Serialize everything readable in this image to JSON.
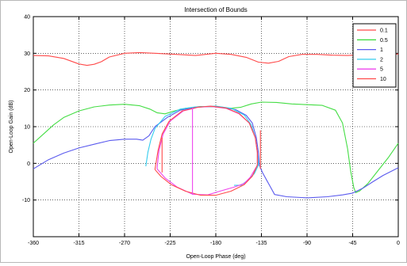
{
  "chart_data": {
    "type": "line",
    "title": "Intersection of Bounds",
    "xlabel": "Open-Loop Phase (deg)",
    "ylabel": "Open-Loop Gain (dB)",
    "xlim": [
      -360,
      0
    ],
    "ylim": [
      -20,
      40
    ],
    "xticks": [
      -360,
      -315,
      -270,
      -225,
      -180,
      -135,
      -90,
      -45,
      0
    ],
    "yticks": [
      -10,
      0,
      10,
      20,
      30,
      40
    ],
    "grid": true,
    "legend_position": "top-right",
    "series": [
      {
        "name": "0.1",
        "color": "#ff4a4a",
        "points": [
          [
            -360,
            29.4
          ],
          [
            -345,
            29.3
          ],
          [
            -330,
            28.6
          ],
          [
            -315,
            27.1
          ],
          [
            -307,
            26.7
          ],
          [
            -300,
            27.0
          ],
          [
            -293,
            27.7
          ],
          [
            -285,
            29.0
          ],
          [
            -270,
            30.0
          ],
          [
            -255,
            30.2
          ],
          [
            -240,
            30.0
          ],
          [
            -225,
            29.8
          ],
          [
            -212,
            29.6
          ],
          [
            -200,
            29.4
          ],
          [
            -190,
            29.7
          ],
          [
            -180,
            30.0
          ],
          [
            -165,
            29.7
          ],
          [
            -150,
            28.9
          ],
          [
            -138,
            27.6
          ],
          [
            -128,
            27.3
          ],
          [
            -118,
            27.8
          ],
          [
            -108,
            29.1
          ],
          [
            -95,
            29.7
          ],
          [
            -80,
            29.7
          ],
          [
            -65,
            29.5
          ],
          [
            -50,
            29.4
          ],
          [
            -35,
            29.6
          ],
          [
            -18,
            29.8
          ],
          [
            0,
            29.8
          ]
        ]
      },
      {
        "name": "0.5",
        "color": "#44dd44",
        "points": [
          [
            -360,
            5.5
          ],
          [
            -350,
            8.0
          ],
          [
            -340,
            10.5
          ],
          [
            -330,
            12.5
          ],
          [
            -315,
            14.3
          ],
          [
            -300,
            15.4
          ],
          [
            -285,
            15.9
          ],
          [
            -270,
            16.1
          ],
          [
            -255,
            15.7
          ],
          [
            -245,
            14.8
          ],
          [
            -238,
            13.8
          ],
          [
            -230,
            13.5
          ],
          [
            -222,
            14.2
          ],
          [
            -210,
            15.0
          ],
          [
            -195,
            15.5
          ],
          [
            -180,
            15.4
          ],
          [
            -165,
            15.0
          ],
          [
            -155,
            15.3
          ],
          [
            -145,
            16.2
          ],
          [
            -135,
            16.7
          ],
          [
            -120,
            16.6
          ],
          [
            -105,
            16.2
          ],
          [
            -90,
            16.0
          ],
          [
            -75,
            15.8
          ],
          [
            -62,
            14.5
          ],
          [
            -55,
            11.0
          ],
          [
            -50,
            4.0
          ],
          [
            -47,
            -2.0
          ],
          [
            -44,
            -6.5
          ],
          [
            -42,
            -8.0
          ],
          [
            -38,
            -7.5
          ],
          [
            -30,
            -5.5
          ],
          [
            -20,
            -2.0
          ],
          [
            -10,
            1.5
          ],
          [
            0,
            5.5
          ]
        ]
      },
      {
        "name": "1",
        "color": "#5a5aee",
        "points": [
          [
            -360,
            -1.5
          ],
          [
            -345,
            1.0
          ],
          [
            -330,
            2.8
          ],
          [
            -315,
            4.2
          ],
          [
            -300,
            5.2
          ],
          [
            -285,
            6.2
          ],
          [
            -270,
            6.6
          ],
          [
            -258,
            6.6
          ],
          [
            -252,
            6.3
          ],
          [
            -246,
            7.5
          ],
          [
            -240,
            10.0
          ],
          [
            -228,
            12.5
          ],
          [
            -215,
            14.5
          ],
          [
            -200,
            15.3
          ],
          [
            -185,
            15.5
          ],
          [
            -175,
            15.4
          ],
          [
            -160,
            14.6
          ],
          [
            -150,
            13.1
          ],
          [
            -144,
            11.0
          ],
          [
            -140,
            7.0
          ],
          [
            -138,
            3.0
          ],
          [
            -137,
            -0.5
          ],
          [
            -134,
            -2.5
          ],
          [
            -130,
            -4.5
          ],
          [
            -126,
            -6.5
          ],
          [
            -122,
            -8.5
          ],
          [
            -110,
            -9.1
          ],
          [
            -90,
            -9.4
          ],
          [
            -70,
            -9.1
          ],
          [
            -55,
            -8.6
          ],
          [
            -45,
            -8.1
          ],
          [
            -35,
            -6.8
          ],
          [
            -25,
            -5.0
          ],
          [
            -15,
            -3.3
          ],
          [
            0,
            -1.2
          ]
        ]
      },
      {
        "name": "2",
        "color": "#33ccee",
        "points": [
          [
            -249,
            -0.8
          ],
          [
            -247,
            3.0
          ],
          [
            -244,
            6.5
          ],
          [
            -240,
            9.5
          ],
          [
            -230,
            12.8
          ],
          [
            -215,
            14.8
          ],
          [
            -200,
            15.4
          ],
          [
            -180,
            15.6
          ],
          [
            -165,
            15.0
          ],
          [
            -152,
            13.2
          ],
          [
            -145,
            10.5
          ],
          [
            -141,
            7.0
          ],
          [
            -139,
            3.0
          ],
          [
            -138,
            -0.5
          ],
          [
            -142,
            -2.8
          ],
          [
            -148,
            -4.5
          ],
          [
            -155,
            -6.0
          ],
          [
            -162,
            -6.0
          ]
        ]
      },
      {
        "name": "5",
        "color": "#ee44ee",
        "points": [
          [
            -238,
            -1.5
          ],
          [
            -236,
            3.5
          ],
          [
            -232,
            8.0
          ],
          [
            -225,
            11.5
          ],
          [
            -212,
            14.3
          ],
          [
            -197,
            15.3
          ],
          [
            -185,
            15.5
          ],
          [
            -170,
            15.0
          ],
          [
            -157,
            13.5
          ],
          [
            -147,
            11.0
          ],
          [
            -141,
            7.0
          ],
          [
            -139,
            3.0
          ],
          [
            -139,
            -0.5
          ],
          [
            -146,
            -3.8
          ],
          [
            -152,
            -5.5
          ],
          [
            -162,
            -6.5
          ],
          [
            -175,
            -7.5
          ],
          [
            -188,
            -8.6
          ],
          [
            -203,
            -8.4
          ],
          [
            -218,
            -6.5
          ],
          [
            -230,
            -4.0
          ],
          [
            -238,
            -1.5
          ]
        ]
      },
      {
        "name": "10",
        "color": "#ff4a4a",
        "points": [
          [
            -240,
            -1.7
          ],
          [
            -237,
            3.5
          ],
          [
            -233,
            8.0
          ],
          [
            -226,
            11.5
          ],
          [
            -213,
            14.3
          ],
          [
            -198,
            15.3
          ],
          [
            -185,
            15.6
          ],
          [
            -170,
            15.1
          ],
          [
            -157,
            13.6
          ],
          [
            -147,
            11.0
          ],
          [
            -141,
            7.0
          ],
          [
            -139,
            3.0
          ],
          [
            -139,
            -0.5
          ],
          [
            -144,
            -3.5
          ],
          [
            -152,
            -5.8
          ],
          [
            -165,
            -7.6
          ],
          [
            -180,
            -8.7
          ],
          [
            -195,
            -8.7
          ],
          [
            -210,
            -7.6
          ],
          [
            -224,
            -5.8
          ],
          [
            -234,
            -3.6
          ],
          [
            -240,
            -1.7
          ]
        ]
      }
    ],
    "vertical_segments": [
      {
        "x": -233,
        "y": [
          -2.5,
          7.0
        ],
        "color": "#ff4a4a"
      },
      {
        "x": -203,
        "y": [
          -8.5,
          15.2
        ],
        "color": "#ee44ee"
      },
      {
        "x": -136,
        "y": [
          -1.5,
          9.0
        ],
        "color": "#ff4a4a"
      }
    ]
  }
}
